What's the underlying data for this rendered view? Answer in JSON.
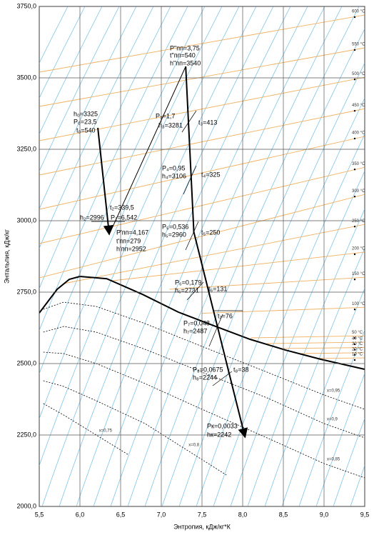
{
  "chart_data": {
    "type": "line",
    "xlabel": "Энтропия, кДж/кг*К",
    "ylabel": "Энтальпия, кДж/кг",
    "xlim": [
      5.5,
      9.5
    ],
    "xticks": [
      {
        "value": 5.5,
        "label": "5,5"
      },
      {
        "value": 6.0,
        "label": "6,0"
      },
      {
        "value": 6.5,
        "label": "6,5"
      },
      {
        "value": 7.0,
        "label": "7,0"
      },
      {
        "value": 7.5,
        "label": "7,5"
      },
      {
        "value": 8.0,
        "label": "8,0"
      },
      {
        "value": 8.5,
        "label": "8,5"
      },
      {
        "value": 9.0,
        "label": "9,0"
      },
      {
        "value": 9.5,
        "label": "9,5"
      }
    ],
    "ylim": [
      2000,
      3750
    ],
    "yticks": [
      {
        "value": 2000,
        "label": "2000,0"
      },
      {
        "value": 2250,
        "label": "2250,0"
      },
      {
        "value": 2500,
        "label": "2500,0"
      },
      {
        "value": 2750,
        "label": "2750,0"
      },
      {
        "value": 3000,
        "label": "3000,0"
      },
      {
        "value": 3250,
        "label": "3250,0"
      },
      {
        "value": 3500,
        "label": "3500,0"
      },
      {
        "value": 3750,
        "label": "3750,0"
      }
    ],
    "grid": true,
    "saturation": {
      "color": "#000000",
      "x": [
        5.5,
        5.72,
        5.87,
        6.0,
        6.33,
        6.77,
        7.21,
        7.65,
        8.09,
        8.53,
        8.96,
        9.5
      ],
      "values": [
        2677,
        2760,
        2795,
        2805,
        2797,
        2742,
        2680,
        2632,
        2585,
        2547,
        2515,
        2480
      ]
    },
    "dryness": [
      {
        "name": "x=0,95",
        "x": [
          5.55,
          5.8,
          6.2,
          6.8,
          7.5,
          8.3,
          9.0,
          9.5
        ],
        "values": [
          2690,
          2715,
          2700,
          2640,
          2560,
          2470,
          2390,
          2340
        ]
      },
      {
        "name": "x=0,9",
        "x": [
          5.55,
          5.8,
          6.2,
          6.8,
          7.5,
          8.3,
          9.0,
          9.5
        ],
        "values": [
          2610,
          2630,
          2610,
          2550,
          2470,
          2380,
          2290,
          2240
        ]
      },
      {
        "name": "x=0,85",
        "x": [
          5.55,
          5.8,
          6.2,
          6.8,
          7.5,
          8.3,
          9.0,
          9.5
        ],
        "values": [
          2540,
          2535,
          2500,
          2430,
          2340,
          2240,
          2150,
          2100
        ]
      },
      {
        "name": "x=0,8",
        "x": [
          5.55,
          5.8,
          6.2,
          6.8,
          7.3,
          7.8
        ],
        "values": [
          2440,
          2420,
          2370,
          2290,
          2200,
          2110
        ]
      },
      {
        "name": "x=0,75",
        "x": [
          5.55,
          5.8,
          6.2,
          6.6
        ],
        "values": [
          2360,
          2320,
          2250,
          2180
        ]
      }
    ],
    "isotherms": [
      {
        "name": "600 °C",
        "x": [
          5.5,
          9.5
        ],
        "values": [
          3520,
          3720
        ]
      },
      {
        "name": "550 °C",
        "x": [
          5.5,
          9.5
        ],
        "values": [
          3400,
          3605
        ]
      },
      {
        "name": "500 °C",
        "x": [
          5.5,
          9.5
        ],
        "values": [
          3280,
          3502
        ]
      },
      {
        "name": "450 °C",
        "x": [
          5.5,
          9.5
        ],
        "values": [
          3160,
          3392
        ]
      },
      {
        "name": "400 °C",
        "x": [
          5.5,
          9.5
        ],
        "values": [
          3040,
          3295
        ]
      },
      {
        "name": "350 °C",
        "x": [
          5.5,
          9.5
        ],
        "values": [
          2920,
          3187
        ]
      },
      {
        "name": "300 °C",
        "x": [
          5.5,
          9.5
        ],
        "values": [
          2800,
          3092
        ]
      },
      {
        "name": "250 °C",
        "x": [
          5.8,
          9.5
        ],
        "values": [
          2780,
          2987
        ]
      },
      {
        "name": "200 °C",
        "x": [
          6.4,
          9.5
        ],
        "values": [
          2790,
          2890
        ]
      },
      {
        "name": "150 °C",
        "x": [
          7.1,
          9.5
        ],
        "values": [
          2760,
          2802
        ]
      },
      {
        "name": "100 °C",
        "x": [
          7.5,
          9.5
        ],
        "values": [
          2676,
          2697
        ]
      },
      {
        "name": "50 °C",
        "x": [
          8.1,
          9.5
        ],
        "values": [
          2590,
          2597
        ]
      },
      {
        "name": "40 °C",
        "x": [
          8.3,
          9.5
        ],
        "values": [
          2570,
          2575
        ]
      },
      {
        "name": "30 °C",
        "x": [
          8.5,
          9.5
        ],
        "values": [
          2553,
          2556
        ]
      },
      {
        "name": "20 °C",
        "x": [
          8.7,
          9.5
        ],
        "values": [
          2535,
          2538
        ]
      },
      {
        "name": "10 °C",
        "x": [
          8.9,
          9.5
        ],
        "values": [
          2518,
          2520
        ]
      }
    ],
    "series": [
      {
        "color": "#000000",
        "x": [
          6.22,
          6.36
        ],
        "values": [
          3325,
          2952
        ]
      },
      {
        "color": "#000000",
        "x": [
          6.36,
          7.3
        ],
        "values": [
          2952,
          3540
        ]
      },
      {
        "color": "#000000",
        "x": [
          7.3,
          7.4,
          8.03
        ],
        "values": [
          3540,
          2960,
          2242
        ]
      }
    ],
    "annotations": [
      "h₀=3325",
      "P₀=23,5",
      "t₀=540",
      "P\"пп=3,75",
      "t\"пп=540",
      "h\"пп=3540",
      "P₃=1,7",
      "h₃=3281",
      "t₃=413",
      "t₂=339,5",
      "h₂=2996",
      "P₂=6,542",
      "P'пп=4,167",
      "t'пп=279",
      "h'пп=2952",
      "P₄=0,95",
      "h₄=3106",
      "t₄=325",
      "P₅=0,536",
      "h₅=2960",
      "t₅=250",
      "P₆=0,179",
      "h₆=2731",
      "t₆=131",
      "t₇=76",
      "P₇=0,048",
      "h₇=2487",
      "P₈=0,0675",
      "h₈=2244",
      "t₈=38",
      "Pк=0,0033",
      "hк=2242"
    ]
  }
}
